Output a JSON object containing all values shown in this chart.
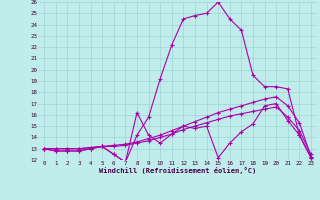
{
  "xlabel": "Windchill (Refroidissement éolien,°C)",
  "bg_color": "#c0ecec",
  "grid_color": "#a0d4d4",
  "line_color": "#aa00aa",
  "x": [
    0,
    1,
    2,
    3,
    4,
    5,
    6,
    7,
    8,
    9,
    10,
    11,
    12,
    13,
    14,
    15,
    16,
    17,
    18,
    19,
    20,
    21,
    22,
    23
  ],
  "line1": [
    13.0,
    12.8,
    12.8,
    12.8,
    13.0,
    13.2,
    12.5,
    11.8,
    16.2,
    14.2,
    13.5,
    14.3,
    15.0,
    14.8,
    15.0,
    12.2,
    13.5,
    14.5,
    15.2,
    16.8,
    17.0,
    15.5,
    14.2,
    12.2
  ],
  "line2": [
    13.0,
    12.8,
    12.8,
    12.8,
    13.0,
    13.2,
    12.5,
    11.8,
    14.2,
    15.8,
    19.2,
    22.2,
    24.5,
    24.8,
    25.0,
    26.0,
    24.5,
    23.5,
    19.5,
    18.5,
    18.5,
    18.3,
    14.2,
    12.2
  ],
  "line3": [
    13.0,
    13.0,
    13.0,
    13.0,
    13.1,
    13.2,
    13.3,
    13.4,
    13.6,
    13.9,
    14.2,
    14.6,
    15.0,
    15.4,
    15.8,
    16.2,
    16.5,
    16.8,
    17.1,
    17.4,
    17.6,
    16.8,
    15.3,
    12.3
  ],
  "line4": [
    13.0,
    13.0,
    13.0,
    13.0,
    13.1,
    13.2,
    13.2,
    13.3,
    13.5,
    13.7,
    14.0,
    14.3,
    14.7,
    15.0,
    15.3,
    15.6,
    15.9,
    16.1,
    16.3,
    16.5,
    16.7,
    15.8,
    14.6,
    12.5
  ],
  "ylim": [
    12,
    26
  ],
  "xlim": [
    0,
    23
  ],
  "yticks": [
    12,
    13,
    14,
    15,
    16,
    17,
    18,
    19,
    20,
    21,
    22,
    23,
    24,
    25,
    26
  ],
  "xticks": [
    0,
    1,
    2,
    3,
    4,
    5,
    6,
    7,
    8,
    9,
    10,
    11,
    12,
    13,
    14,
    15,
    16,
    17,
    18,
    19,
    20,
    21,
    22,
    23
  ]
}
